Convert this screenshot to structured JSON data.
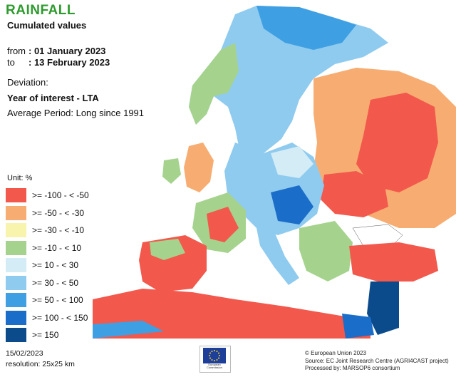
{
  "title": "RAINFALL",
  "subtitle": "Cumulated values",
  "period": {
    "from_label": "from",
    "from_value": ": 01 January 2023",
    "to_label": "to",
    "to_value": ": 13 February 2023"
  },
  "deviation_label": "Deviation:",
  "year_of_interest": "Year of interest - LTA",
  "average_period": "Average Period: Long since 1991",
  "legend": {
    "unit": "Unit:  %",
    "classes": [
      {
        "label": ">= -100 - < -50",
        "color": "#f2584b"
      },
      {
        "label": ">= -50 - < -30",
        "color": "#f7ad72"
      },
      {
        "label": ">= -30 - < -10",
        "color": "#f8f4ad"
      },
      {
        "label": ">= -10 - < 10",
        "color": "#a5d38d"
      },
      {
        "label": ">= 10 - < 30",
        "color": "#d4ecf6"
      },
      {
        "label": ">= 30 - < 50",
        "color": "#8fcbef"
      },
      {
        "label": ">= 50 - < 100",
        "color": "#3f9fe3"
      },
      {
        "label": ">= 100 - < 150",
        "color": "#1a6ec9"
      },
      {
        "label": ">= 150",
        "color": "#0b4b8c"
      }
    ]
  },
  "footer": {
    "date": "15/02/2023",
    "resolution": "resolution:  25x25 km",
    "eu_logo_text": "European Commission",
    "credits": [
      "© European Union 2023",
      "Source: EC Joint Research Centre (AGRI4CAST project)",
      "Processed by: MARSOP6 consortium"
    ]
  },
  "icons": [
    "eu-flag-icon"
  ]
}
